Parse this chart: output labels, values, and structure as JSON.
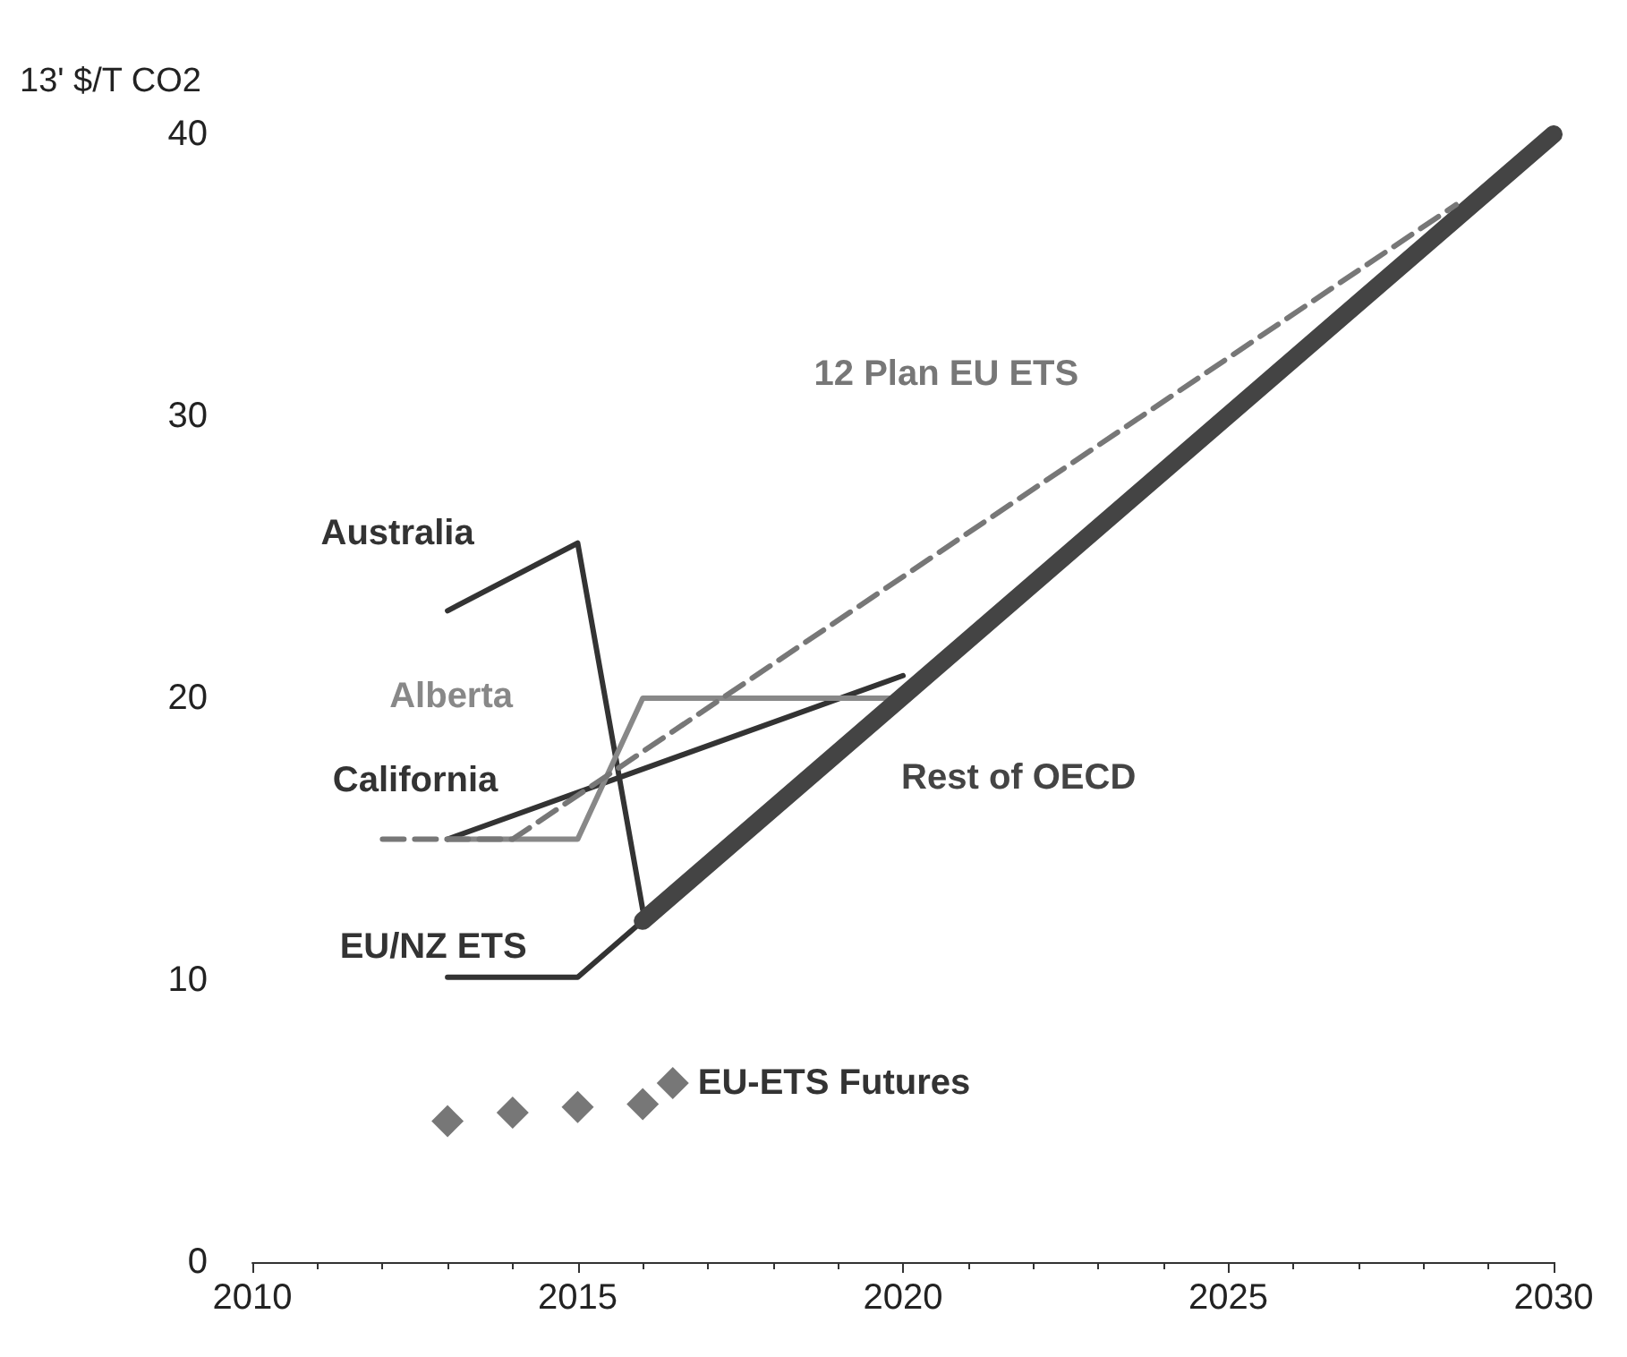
{
  "chart_data": {
    "type": "line",
    "ylabel": "13' $/T CO2",
    "xlim": [
      2010,
      2030
    ],
    "xticks": [
      2010,
      2015,
      2020,
      2025,
      2030
    ],
    "ylim": [
      0,
      40
    ],
    "yticks": [
      0,
      10,
      20,
      30,
      40
    ],
    "grid": false,
    "legend": "bottom",
    "marker": "none",
    "series": [
      {
        "name": "Australia",
        "color": "#333333",
        "x": [
          2013,
          2015,
          2016
        ],
        "values": [
          23.1,
          25.5,
          12.5
        ]
      },
      {
        "name": "EU/NZ ETS",
        "color": "#333333",
        "x": [
          2013,
          2015,
          2016
        ],
        "values": [
          10.1,
          10.1,
          12.1
        ]
      },
      {
        "name": "California",
        "color": "#333333",
        "x": [
          2013,
          2020
        ],
        "values": [
          15,
          20.8
        ]
      },
      {
        "name": "Alberta",
        "color": "#888888",
        "x": [
          2013,
          2015,
          2016,
          2020
        ],
        "values": [
          15,
          15,
          20,
          20
        ]
      },
      {
        "name": "Rest of OECD",
        "color": "#444444",
        "x": [
          2016,
          2030
        ],
        "values": [
          12.1,
          40
        ]
      },
      {
        "name": "12 Plan EU ETS",
        "color": "#777777",
        "line_style": "dashed",
        "x": [
          2012,
          2014,
          2028.5
        ],
        "values": [
          15,
          15,
          37.5
        ]
      },
      {
        "name": "EU-ETS Futures",
        "type": "scatter",
        "marker": "diamond",
        "color": "#555555",
        "x": [
          2013,
          2014,
          2015,
          2016
        ],
        "values": [
          5,
          5.3,
          5.5,
          5.6
        ]
      }
    ]
  }
}
